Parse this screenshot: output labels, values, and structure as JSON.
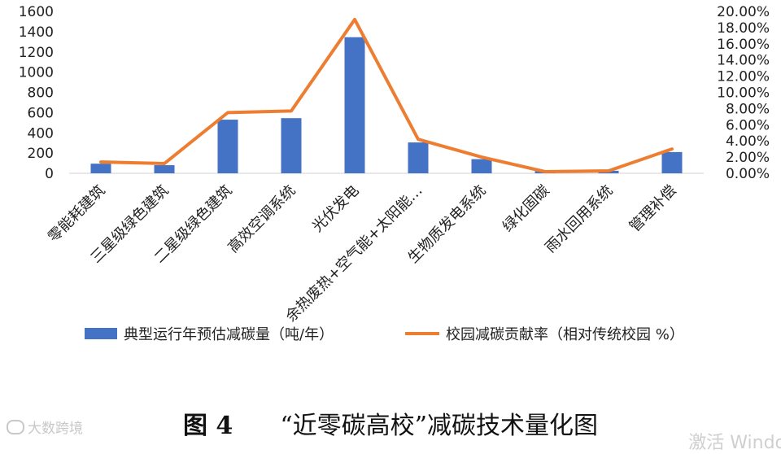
{
  "chart_data": {
    "type": "bar",
    "categories": [
      "零能耗建筑",
      "三星级绿色建筑",
      "二星级绿色建筑",
      "高效空调系统",
      "光伏发电",
      "余热废热+空气能+太阳能…",
      "生物质发电系统",
      "绿化固碳",
      "雨水回用系统",
      "管理补偿"
    ],
    "series": [
      {
        "name": "典型运行年预估减碳量（吨/年）",
        "type": "bar",
        "axis": "left",
        "color": "#4472C4",
        "values": [
          95,
          80,
          530,
          545,
          1345,
          305,
          140,
          20,
          25,
          210
        ]
      },
      {
        "name": "校园减碳贡献率（相对传统校园 %）",
        "type": "line",
        "axis": "right",
        "color": "#ED7D31",
        "values": [
          1.4,
          1.2,
          7.5,
          7.7,
          19.0,
          4.2,
          2.0,
          0.2,
          0.3,
          3.0
        ]
      }
    ],
    "y_left": {
      "min": 0,
      "max": 1600,
      "ticks": [
        "1600",
        "1400",
        "1200",
        "1000",
        "800",
        "600",
        "400",
        "200",
        "0"
      ]
    },
    "y_right": {
      "min": 0,
      "max": 20,
      "ticks": [
        "20.00%",
        "18.00%",
        "16.00%",
        "14.00%",
        "12.00%",
        "10.00%",
        "8.00%",
        "6.00%",
        "4.00%",
        "2.00%",
        "0.00%"
      ]
    },
    "legend_position": "bottom",
    "grid": false
  },
  "caption": {
    "number": "图 4",
    "title": "“近零碳高校”减碳技术量化图"
  },
  "watermark": "大数跨境",
  "activate_text": "激活 Windo"
}
